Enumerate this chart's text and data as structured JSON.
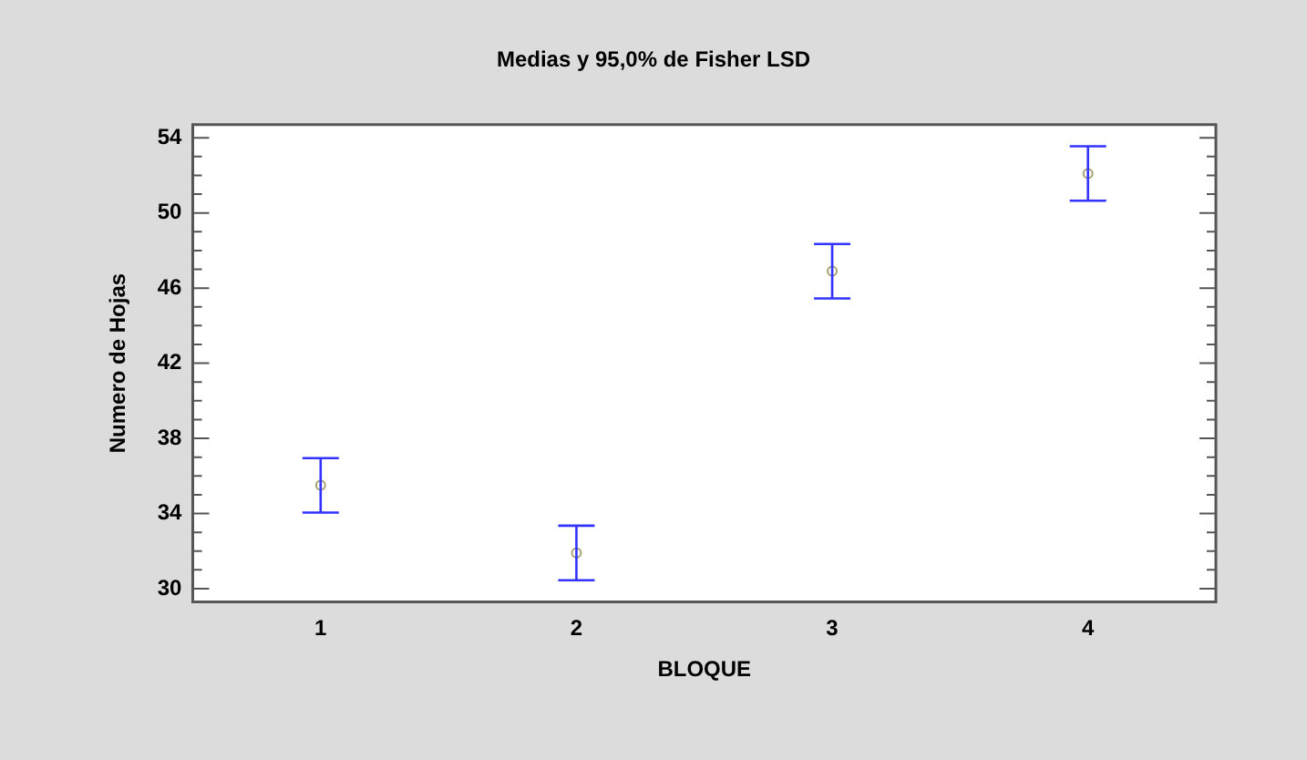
{
  "chart_data": {
    "type": "scatter",
    "title": "Medias y 95,0% de Fisher LSD",
    "xlabel": "BLOQUE",
    "ylabel": "Numero de Hojas",
    "categories": [
      "1",
      "2",
      "3",
      "4"
    ],
    "series": [
      {
        "color": "#a8a070",
        "values": [
          35.5,
          31.9,
          46.9,
          52.1
        ],
        "errors": [
          1.45,
          1.45,
          1.45,
          1.45
        ]
      }
    ],
    "ylim": [
      29.3,
      54.7
    ],
    "yticks": [
      30,
      {
        "value": 31,
        "label": null
      },
      {
        "value": 32,
        "label": null
      },
      {
        "value": 33,
        "label": null
      },
      34,
      {
        "value": 35,
        "label": null
      },
      {
        "value": 36,
        "label": null
      },
      {
        "value": 37,
        "label": null
      },
      38,
      {
        "value": 39,
        "label": null
      },
      {
        "value": 40,
        "label": null
      },
      {
        "value": 41,
        "label": null
      },
      42,
      {
        "value": 43,
        "label": null
      },
      {
        "value": 44,
        "label": null
      },
      {
        "value": 45,
        "label": null
      },
      46,
      {
        "value": 47,
        "label": null
      },
      {
        "value": 48,
        "label": null
      },
      {
        "value": 49,
        "label": null
      },
      50,
      {
        "value": 51,
        "label": null
      },
      {
        "value": 52,
        "label": null
      },
      {
        "value": 53,
        "label": null
      },
      54
    ],
    "grid": false,
    "legend": false,
    "marker": "circle"
  }
}
